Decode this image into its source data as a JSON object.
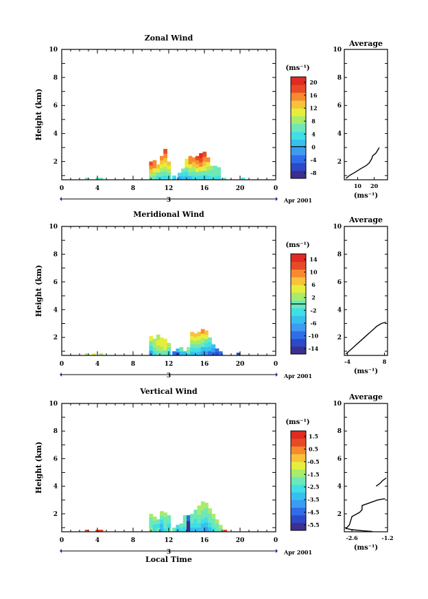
{
  "figure": {
    "date_label": "Apr 2001",
    "day_label": "3",
    "xlabel": "Local Time",
    "ylabel": "Height (km)",
    "x_ticks": [
      "0",
      "4",
      "8",
      "12",
      "16",
      "20",
      "0"
    ],
    "y_ticks": [
      "2",
      "4",
      "6",
      "8",
      "10"
    ],
    "profile_title": "Average",
    "profile_unit": "(ms⁻¹)",
    "colorbar_unit": "(ms⁻¹)"
  },
  "colormap": [
    "#3b2f8f",
    "#2d48c8",
    "#2f6ee8",
    "#3c9cf0",
    "#36c0f0",
    "#40dfe6",
    "#6de8b8",
    "#a8ec6a",
    "#e6ee3c",
    "#f8c23a",
    "#f88a2e",
    "#e84a26",
    "#e02a22"
  ],
  "chart_data": [
    {
      "type": "heatmap",
      "title": "Zonal Wind",
      "xlabel": "",
      "ylabel": "Height (km)",
      "xlim": [
        0,
        24
      ],
      "ylim": [
        0.7,
        10
      ],
      "colorbar": {
        "ticks": [
          "20",
          "16",
          "12",
          "8",
          "4",
          "0",
          "-4",
          "-8"
        ],
        "range": [
          -10,
          22
        ],
        "zero_line": 0
      },
      "columns": [
        {
          "t": 2.8,
          "top": 0.85,
          "values": [
            5
          ]
        },
        {
          "t": 4.0,
          "top": 0.85,
          "values": [
            6
          ]
        },
        {
          "t": 4.4,
          "top": 0.85,
          "values": [
            6
          ]
        },
        {
          "t": 10.0,
          "top": 2.0,
          "values": [
            5,
            9,
            13,
            16,
            18
          ]
        },
        {
          "t": 10.4,
          "top": 2.1,
          "values": [
            5,
            8,
            12,
            15,
            17
          ]
        },
        {
          "t": 10.8,
          "top": 1.8,
          "values": [
            4,
            7,
            11,
            14
          ]
        },
        {
          "t": 11.2,
          "top": 2.4,
          "values": [
            4,
            6,
            9,
            12,
            14,
            16
          ]
        },
        {
          "t": 11.6,
          "top": 2.9,
          "values": [
            3,
            5,
            8,
            11,
            13,
            16,
            18
          ]
        },
        {
          "t": 12.0,
          "top": 2.0,
          "values": [
            3,
            6,
            9,
            12,
            14
          ]
        },
        {
          "t": 12.6,
          "top": 1.0,
          "values": [
            2,
            4
          ]
        },
        {
          "t": 13.2,
          "top": 1.2,
          "values": [
            -1,
            3
          ]
        },
        {
          "t": 13.6,
          "top": 1.5,
          "values": [
            1,
            4,
            6
          ]
        },
        {
          "t": 14.0,
          "top": 2.2,
          "values": [
            2,
            4,
            7,
            10,
            12
          ]
        },
        {
          "t": 14.4,
          "top": 2.4,
          "values": [
            2,
            5,
            8,
            12,
            15,
            17
          ]
        },
        {
          "t": 14.8,
          "top": 2.3,
          "values": [
            3,
            5,
            9,
            13,
            16
          ]
        },
        {
          "t": 15.2,
          "top": 2.4,
          "values": [
            3,
            6,
            10,
            14,
            17,
            18
          ]
        },
        {
          "t": 15.6,
          "top": 2.6,
          "values": [
            3,
            6,
            10,
            15,
            18,
            20
          ]
        },
        {
          "t": 16.0,
          "top": 2.7,
          "values": [
            4,
            6,
            10,
            14,
            17,
            19
          ]
        },
        {
          "t": 16.4,
          "top": 2.3,
          "values": [
            4,
            6,
            9,
            12,
            15
          ]
        },
        {
          "t": 16.8,
          "top": 1.7,
          "values": [
            4,
            5,
            6,
            8
          ]
        },
        {
          "t": 17.2,
          "top": 1.7,
          "values": [
            4,
            5,
            6,
            7
          ]
        },
        {
          "t": 17.6,
          "top": 1.6,
          "values": [
            4,
            5,
            6
          ]
        },
        {
          "t": 18.2,
          "top": 0.85,
          "values": [
            5
          ]
        },
        {
          "t": 20.3,
          "top": 0.85,
          "values": [
            4
          ]
        }
      ],
      "profile": {
        "xlim": [
          2,
          28
        ],
        "x_ticks": [
          10,
          20
        ],
        "ylim": [
          0.7,
          10
        ],
        "points": [
          [
            3,
            0.8
          ],
          [
            5,
            1.0
          ],
          [
            8,
            1.2
          ],
          [
            12,
            1.5
          ],
          [
            15,
            1.7
          ],
          [
            17,
            1.9
          ],
          [
            18.5,
            2.2
          ],
          [
            19,
            2.4
          ],
          [
            20,
            2.5
          ],
          [
            21,
            2.6
          ],
          [
            22,
            2.8
          ],
          [
            23,
            3.0
          ]
        ]
      }
    },
    {
      "type": "heatmap",
      "title": "Meridional Wind",
      "xlabel": "",
      "ylabel": "Height (km)",
      "xlim": [
        0,
        24
      ],
      "ylim": [
        0.7,
        10
      ],
      "colorbar": {
        "ticks": [
          "14",
          "10",
          "6",
          "2",
          "-2",
          "-6",
          "-10",
          "-14"
        ],
        "range": [
          -16,
          16
        ],
        "zero_line": 0
      },
      "columns": [
        {
          "t": 2.8,
          "top": 0.85,
          "values": [
            3
          ]
        },
        {
          "t": 3.6,
          "top": 0.85,
          "values": [
            4
          ]
        },
        {
          "t": 4.4,
          "top": 0.85,
          "values": [
            3
          ]
        },
        {
          "t": 10.0,
          "top": 2.1,
          "values": [
            -8,
            -2,
            1,
            4
          ]
        },
        {
          "t": 10.4,
          "top": 1.9,
          "values": [
            -2,
            1,
            3,
            2
          ]
        },
        {
          "t": 10.8,
          "top": 2.2,
          "values": [
            0,
            2,
            5,
            3
          ]
        },
        {
          "t": 11.2,
          "top": 2.0,
          "values": [
            1,
            3,
            5,
            4
          ]
        },
        {
          "t": 11.6,
          "top": 1.9,
          "values": [
            0,
            4,
            6
          ]
        },
        {
          "t": 12.0,
          "top": 1.6,
          "values": [
            -2,
            1,
            3
          ]
        },
        {
          "t": 12.6,
          "top": 1.0,
          "values": [
            -9
          ]
        },
        {
          "t": 13.0,
          "top": 1.2,
          "values": [
            -12,
            -6
          ]
        },
        {
          "t": 13.4,
          "top": 1.3,
          "values": [
            -4,
            -1
          ]
        },
        {
          "t": 13.8,
          "top": 1.0,
          "values": [
            -6
          ]
        },
        {
          "t": 14.2,
          "top": 1.3,
          "values": [
            -3,
            0,
            2
          ]
        },
        {
          "t": 14.6,
          "top": 2.4,
          "values": [
            -4,
            -2,
            1,
            3,
            5,
            7
          ]
        },
        {
          "t": 15.0,
          "top": 2.3,
          "values": [
            -6,
            -3,
            0,
            3,
            5,
            8
          ]
        },
        {
          "t": 15.4,
          "top": 2.4,
          "values": [
            -5,
            -2,
            0,
            3,
            6,
            8
          ]
        },
        {
          "t": 15.8,
          "top": 2.6,
          "values": [
            -7,
            -4,
            -1,
            2,
            5,
            9
          ]
        },
        {
          "t": 16.2,
          "top": 2.5,
          "values": [
            -8,
            -5,
            -2,
            1,
            4,
            7
          ]
        },
        {
          "t": 16.6,
          "top": 2.0,
          "values": [
            -9,
            -6,
            -3,
            -1
          ]
        },
        {
          "t": 17.0,
          "top": 1.5,
          "values": [
            -11,
            -8,
            -5
          ]
        },
        {
          "t": 17.4,
          "top": 1.2,
          "values": [
            -12,
            -9
          ]
        },
        {
          "t": 17.8,
          "top": 1.0,
          "values": [
            -10
          ]
        },
        {
          "t": 19.8,
          "top": 0.9,
          "values": [
            -13
          ]
        }
      ],
      "profile": {
        "xlim": [
          -5,
          9
        ],
        "x_ticks": [
          -4,
          8
        ],
        "ylim": [
          0.7,
          10
        ],
        "points": [
          [
            -4.5,
            0.8
          ],
          [
            -3.5,
            1.0
          ],
          [
            -2,
            1.3
          ],
          [
            0,
            1.7
          ],
          [
            2,
            2.1
          ],
          [
            3.5,
            2.4
          ],
          [
            4.5,
            2.6
          ],
          [
            5.5,
            2.8
          ],
          [
            7,
            3.0
          ],
          [
            8.5,
            3.1
          ]
        ]
      }
    },
    {
      "type": "heatmap",
      "title": "Vertical Wind",
      "xlabel": "Local Time",
      "ylabel": "Height (km)",
      "xlim": [
        0,
        24
      ],
      "ylim": [
        0.7,
        10
      ],
      "colorbar": {
        "ticks": [
          "1.5",
          "0.5",
          "-0.5",
          "-1.5",
          "-2.5",
          "-3.5",
          "-4.5",
          "-5.5"
        ],
        "range": [
          -6,
          2
        ],
        "zero_line": null
      },
      "columns": [
        {
          "t": 2.8,
          "top": 0.85,
          "values": [
            1.0
          ]
        },
        {
          "t": 4.0,
          "top": 0.85,
          "values": [
            0.8
          ]
        },
        {
          "t": 4.4,
          "top": 0.85,
          "values": [
            0.8
          ]
        },
        {
          "t": 10.0,
          "top": 2.0,
          "values": [
            -1.5,
            -2.0,
            -2.3,
            -1.8,
            -1.5
          ]
        },
        {
          "t": 10.4,
          "top": 1.8,
          "values": [
            -2.5,
            -2.8,
            -2.2,
            -1.5
          ]
        },
        {
          "t": 10.8,
          "top": 1.6,
          "values": [
            -2.0,
            -2.4,
            -2.0
          ]
        },
        {
          "t": 11.2,
          "top": 2.2,
          "values": [
            -3.0,
            -3.5,
            -2.6,
            -2.0,
            -1.6
          ]
        },
        {
          "t": 11.6,
          "top": 2.1,
          "values": [
            -2.8,
            -2.3,
            -2.1,
            -1.7,
            -1.5
          ]
        },
        {
          "t": 12.0,
          "top": 1.9,
          "values": [
            -2.2,
            -2.5,
            -2.0,
            -1.8
          ]
        },
        {
          "t": 12.6,
          "top": 1.0,
          "values": [
            -2.0
          ]
        },
        {
          "t": 13.0,
          "top": 1.2,
          "values": [
            -3.2,
            -2.5
          ]
        },
        {
          "t": 13.4,
          "top": 1.3,
          "values": [
            -2.6,
            -2.0
          ]
        },
        {
          "t": 13.8,
          "top": 1.9,
          "values": [
            -2.8,
            -2.2,
            -1.8
          ]
        },
        {
          "t": 14.2,
          "top": 1.9,
          "values": [
            -6.2,
            -5.8,
            -4.5
          ]
        },
        {
          "t": 14.6,
          "top": 2.0,
          "values": [
            -3.0,
            -2.4,
            -2.0,
            -1.8
          ]
        },
        {
          "t": 15.0,
          "top": 2.3,
          "values": [
            -3.2,
            -2.8,
            -2.4,
            -2.0,
            -1.7
          ]
        },
        {
          "t": 15.4,
          "top": 2.6,
          "values": [
            -3.0,
            -2.6,
            -2.2,
            -1.8,
            -1.6,
            -1.5
          ]
        },
        {
          "t": 15.8,
          "top": 2.9,
          "values": [
            -3.4,
            -3.0,
            -2.5,
            -2.0,
            -1.7,
            -1.5,
            -1.3
          ]
        },
        {
          "t": 16.2,
          "top": 2.8,
          "values": [
            -3.6,
            -3.2,
            -2.7,
            -2.2,
            -1.8,
            -1.6
          ]
        },
        {
          "t": 16.6,
          "top": 2.4,
          "values": [
            -3.0,
            -2.5,
            -2.0,
            -1.7,
            -1.5
          ]
        },
        {
          "t": 17.0,
          "top": 2.0,
          "values": [
            -2.6,
            -2.2,
            -1.8,
            -1.5
          ]
        },
        {
          "t": 17.4,
          "top": 1.6,
          "values": [
            -2.3,
            -1.9,
            -1.6
          ]
        },
        {
          "t": 17.8,
          "top": 1.2,
          "values": [
            -2.0,
            -1.6
          ]
        },
        {
          "t": 18.3,
          "top": 0.85,
          "values": [
            0.8
          ]
        }
      ],
      "profile": {
        "xlim": [
          -2.9,
          -1.2
        ],
        "x_ticks": [
          -2.6,
          -1.2
        ],
        "ylim": [
          0.7,
          10
        ],
        "points": [
          [
            -2.85,
            0.9
          ],
          [
            -2.7,
            1.2
          ],
          [
            -2.65,
            1.5
          ],
          [
            -2.6,
            1.8
          ],
          [
            -2.3,
            2.1
          ],
          [
            -2.2,
            2.3
          ],
          [
            -2.2,
            2.6
          ],
          [
            -1.9,
            2.8
          ],
          [
            -1.6,
            3.0
          ],
          [
            -1.3,
            3.1
          ]
        ],
        "upper_points": [
          [
            -1.65,
            4.0
          ],
          [
            -1.5,
            4.2
          ],
          [
            -1.4,
            4.4
          ],
          [
            -1.25,
            4.6
          ]
        ],
        "bottom_points": [
          [
            -2.85,
            0.95
          ],
          [
            -2.6,
            0.85
          ],
          [
            -2.2,
            0.78
          ],
          [
            -1.8,
            0.72
          ]
        ]
      }
    }
  ]
}
